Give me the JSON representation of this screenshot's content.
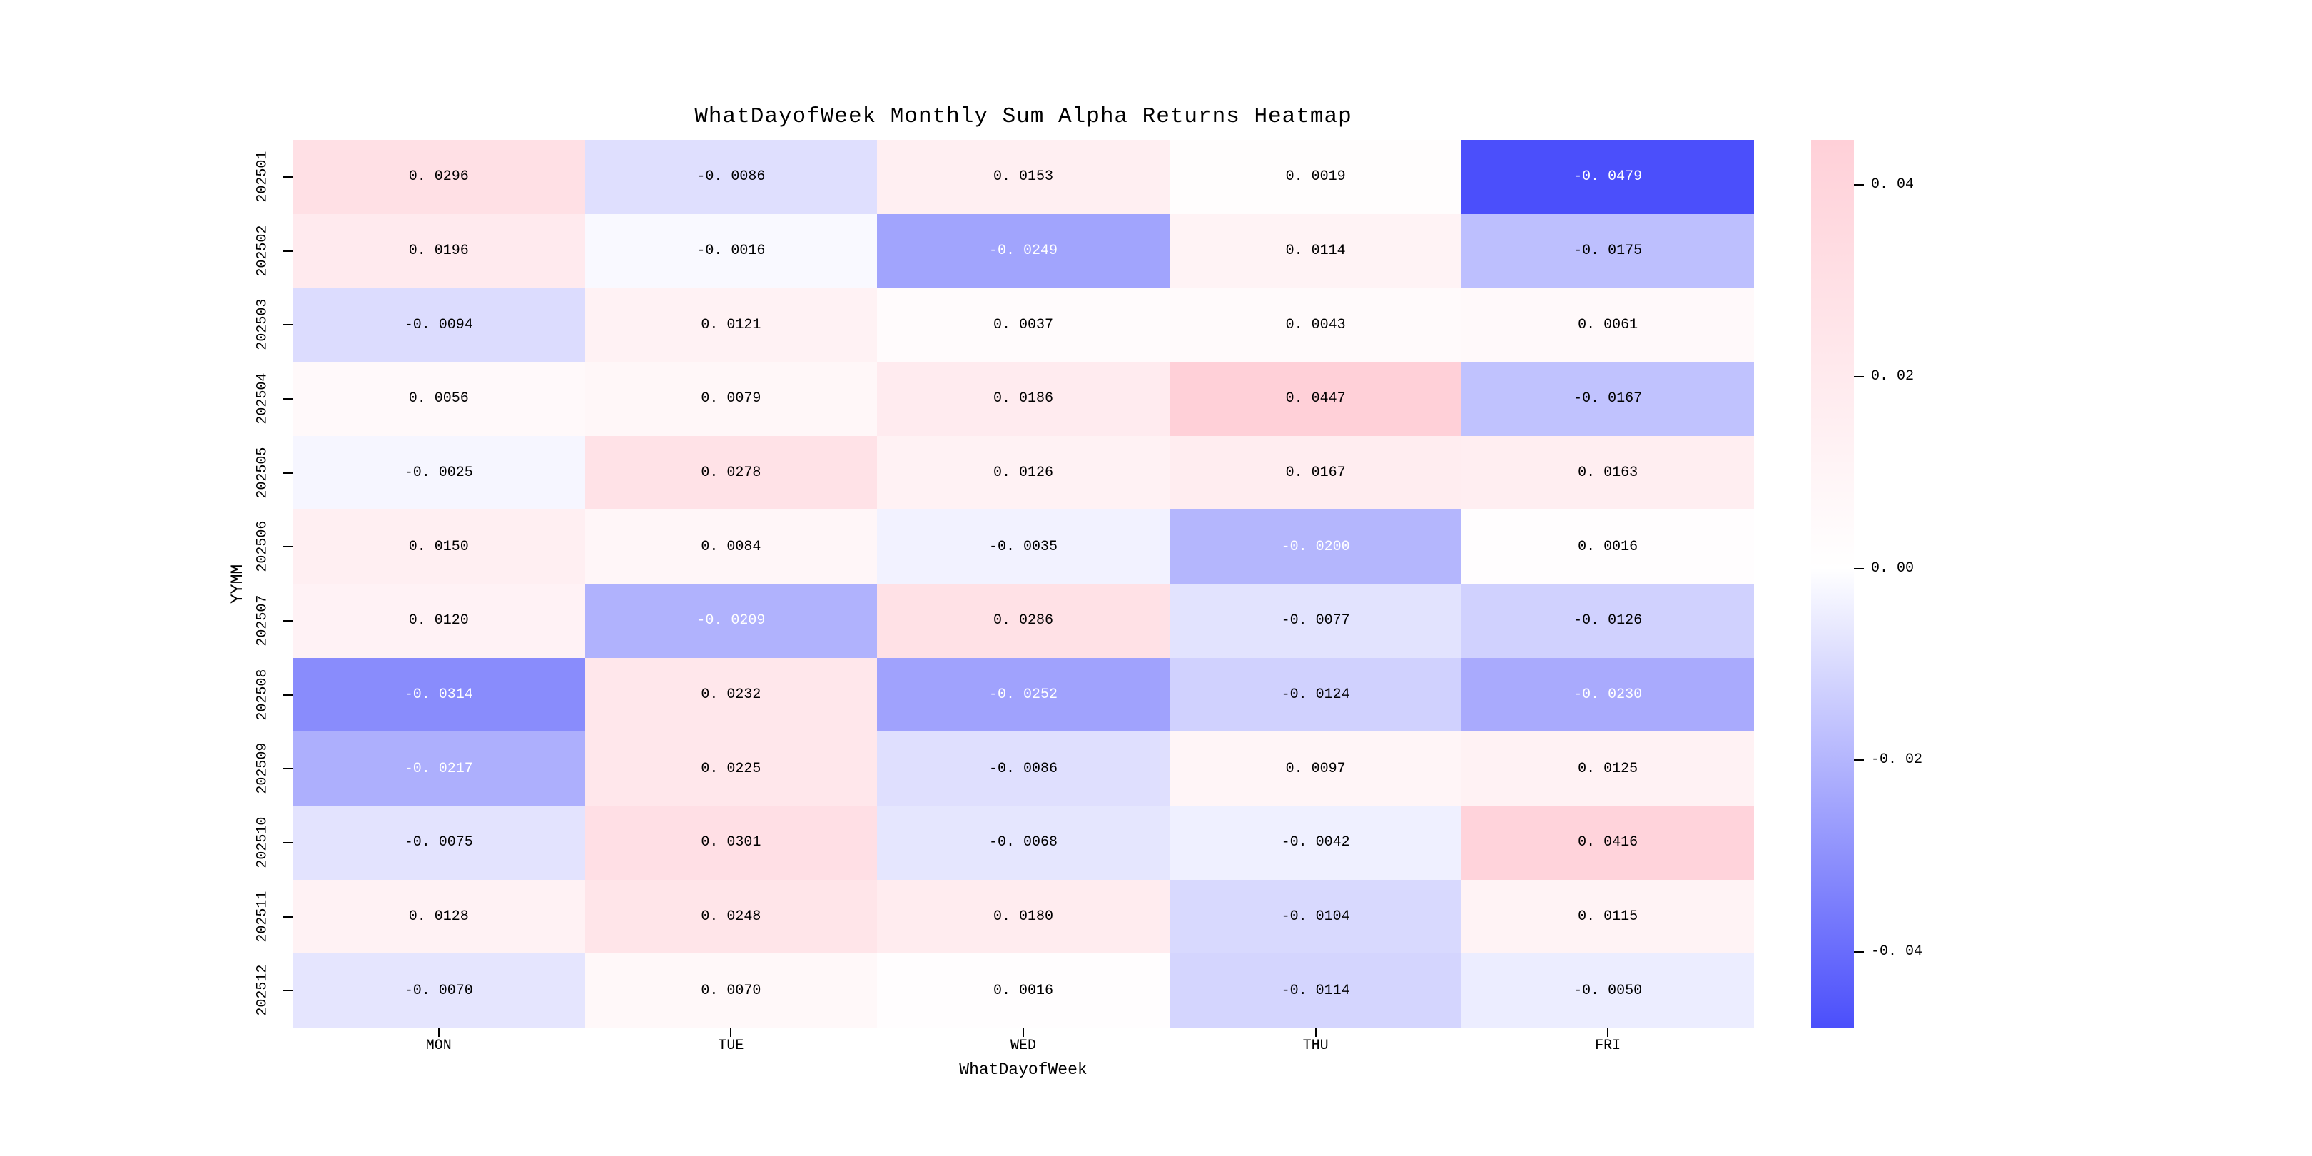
{
  "figure": {
    "background_color": "#ffffff"
  },
  "chart_data": {
    "type": "heatmap",
    "title": "WhatDayofWeek Monthly Sum Alpha Returns Heatmap",
    "xlabel": "WhatDayofWeek",
    "ylabel": "YYMM",
    "columns": [
      "MON",
      "TUE",
      "WED",
      "THU",
      "FRI"
    ],
    "rows": [
      "202501",
      "202502",
      "202503",
      "202504",
      "202505",
      "202506",
      "202507",
      "202508",
      "202509",
      "202510",
      "202511",
      "202512"
    ],
    "values": [
      [
        0.0296,
        -0.0086,
        0.0153,
        0.0019,
        -0.0479
      ],
      [
        0.0196,
        -0.0016,
        -0.0249,
        0.0114,
        -0.0175
      ],
      [
        -0.0094,
        0.0121,
        0.0037,
        0.0043,
        0.0061
      ],
      [
        0.0056,
        0.0079,
        0.0186,
        0.0447,
        -0.0167
      ],
      [
        -0.0025,
        0.0278,
        0.0126,
        0.0167,
        0.0163
      ],
      [
        0.015,
        0.0084,
        -0.0035,
        -0.02,
        0.0016
      ],
      [
        0.012,
        -0.0209,
        0.0286,
        -0.0077,
        -0.0126
      ],
      [
        -0.0314,
        0.0232,
        -0.0252,
        -0.0124,
        -0.023
      ],
      [
        -0.0217,
        0.0225,
        -0.0086,
        0.0097,
        0.0125
      ],
      [
        -0.0075,
        0.0301,
        -0.0068,
        -0.0042,
        0.0416
      ],
      [
        0.0128,
        0.0248,
        0.018,
        -0.0104,
        0.0115
      ],
      [
        -0.007,
        0.007,
        0.0016,
        -0.0114,
        -0.005
      ]
    ],
    "vmin": -0.0479,
    "vmax": 0.0447,
    "colorbar_ticks": [
      0.04,
      0.02,
      0.0,
      -0.02,
      -0.04
    ],
    "colormap": {
      "positive_max": "#ffd0d8",
      "zero": "#ffffff",
      "negative_min": "#4b4ffb"
    },
    "annotation_colors": {
      "dark_text": "#000000",
      "light_text": "#ffffff",
      "light_text_value_threshold": -0.019
    },
    "legend_position": "right",
    "grid": false
  }
}
